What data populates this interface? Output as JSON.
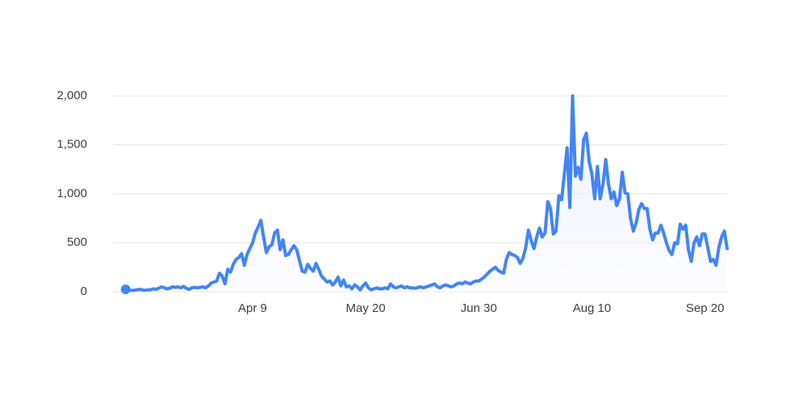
{
  "chart_data": {
    "type": "line",
    "color": "#4285f4",
    "grid": true,
    "ylim": [
      0,
      2000
    ],
    "yticks": [
      0,
      500,
      {
        "value": 1000,
        "label": "1,000"
      },
      {
        "value": 1500,
        "label": "1,500"
      },
      {
        "value": 2000,
        "label": "2,000"
      }
    ],
    "categories": [
      null,
      null,
      null,
      null,
      null,
      null,
      null,
      null,
      null,
      null,
      null,
      null,
      null,
      null,
      null,
      null,
      null,
      null,
      null,
      null,
      null,
      null,
      null,
      null,
      null,
      null,
      null,
      null,
      null,
      null,
      null,
      null,
      null,
      null,
      null,
      null,
      null,
      null,
      null,
      null,
      null,
      null,
      null,
      null,
      null,
      null,
      "Apr 9",
      null,
      null,
      null,
      null,
      null,
      null,
      null,
      null,
      null,
      null,
      null,
      null,
      null,
      null,
      null,
      null,
      null,
      null,
      null,
      null,
      null,
      null,
      null,
      null,
      null,
      null,
      null,
      null,
      null,
      null,
      null,
      null,
      null,
      null,
      null,
      null,
      null,
      null,
      null,
      null,
      "May 20",
      null,
      null,
      null,
      null,
      null,
      null,
      null,
      null,
      null,
      null,
      null,
      null,
      null,
      null,
      null,
      null,
      null,
      null,
      null,
      null,
      null,
      null,
      null,
      null,
      null,
      null,
      null,
      null,
      null,
      null,
      null,
      null,
      null,
      null,
      null,
      null,
      null,
      null,
      null,
      null,
      "Jun 30",
      null,
      null,
      null,
      null,
      null,
      null,
      null,
      null,
      null,
      null,
      null,
      null,
      null,
      null,
      null,
      null,
      null,
      null,
      null,
      null,
      null,
      null,
      null,
      null,
      null,
      null,
      null,
      null,
      null,
      null,
      null,
      null,
      null,
      null,
      null,
      null,
      null,
      null,
      null,
      null,
      "Aug 10",
      null,
      null,
      null,
      null,
      null,
      null,
      null,
      null,
      null,
      null,
      null,
      null,
      null,
      null,
      null,
      null,
      null,
      null,
      null,
      null,
      null,
      null,
      null,
      null,
      null,
      null,
      null,
      null,
      null,
      null,
      null,
      null,
      null,
      null,
      null,
      null,
      null,
      null,
      null,
      null,
      "Sep 20",
      null,
      null,
      null,
      null,
      null,
      null,
      null,
      null
    ],
    "values": [
      25,
      20,
      15,
      15,
      20,
      25,
      20,
      15,
      20,
      20,
      30,
      25,
      35,
      50,
      40,
      30,
      35,
      50,
      45,
      50,
      40,
      55,
      35,
      25,
      40,
      45,
      40,
      45,
      50,
      40,
      60,
      90,
      100,
      110,
      190,
      160,
      80,
      230,
      200,
      280,
      330,
      350,
      390,
      270,
      380,
      440,
      500,
      600,
      660,
      730,
      560,
      400,
      460,
      480,
      600,
      630,
      430,
      530,
      370,
      380,
      430,
      470,
      430,
      320,
      210,
      200,
      280,
      240,
      210,
      290,
      230,
      160,
      130,
      100,
      110,
      70,
      100,
      150,
      60,
      120,
      50,
      60,
      30,
      70,
      50,
      20,
      60,
      90,
      40,
      20,
      30,
      40,
      30,
      30,
      40,
      30,
      80,
      50,
      40,
      50,
      60,
      40,
      50,
      40,
      40,
      35,
      45,
      50,
      40,
      50,
      60,
      70,
      80,
      50,
      40,
      60,
      70,
      60,
      50,
      60,
      80,
      90,
      80,
      100,
      90,
      80,
      100,
      110,
      110,
      130,
      150,
      180,
      210,
      230,
      250,
      220,
      200,
      190,
      330,
      400,
      380,
      370,
      350,
      290,
      340,
      450,
      630,
      520,
      440,
      560,
      650,
      560,
      600,
      920,
      850,
      590,
      620,
      980,
      940,
      1200,
      1470,
      860,
      2000,
      1180,
      1270,
      1150,
      1550,
      1620,
      1330,
      1200,
      950,
      1280,
      950,
      1100,
      1350,
      1100,
      950,
      1020,
      880,
      950,
      1220,
      1010,
      1000,
      750,
      620,
      700,
      840,
      900,
      850,
      850,
      640,
      530,
      600,
      600,
      680,
      600,
      500,
      420,
      380,
      500,
      490,
      690,
      640,
      680,
      430,
      310,
      500,
      560,
      470,
      590,
      590,
      450,
      310,
      330,
      270,
      450,
      560,
      620,
      440
    ]
  }
}
